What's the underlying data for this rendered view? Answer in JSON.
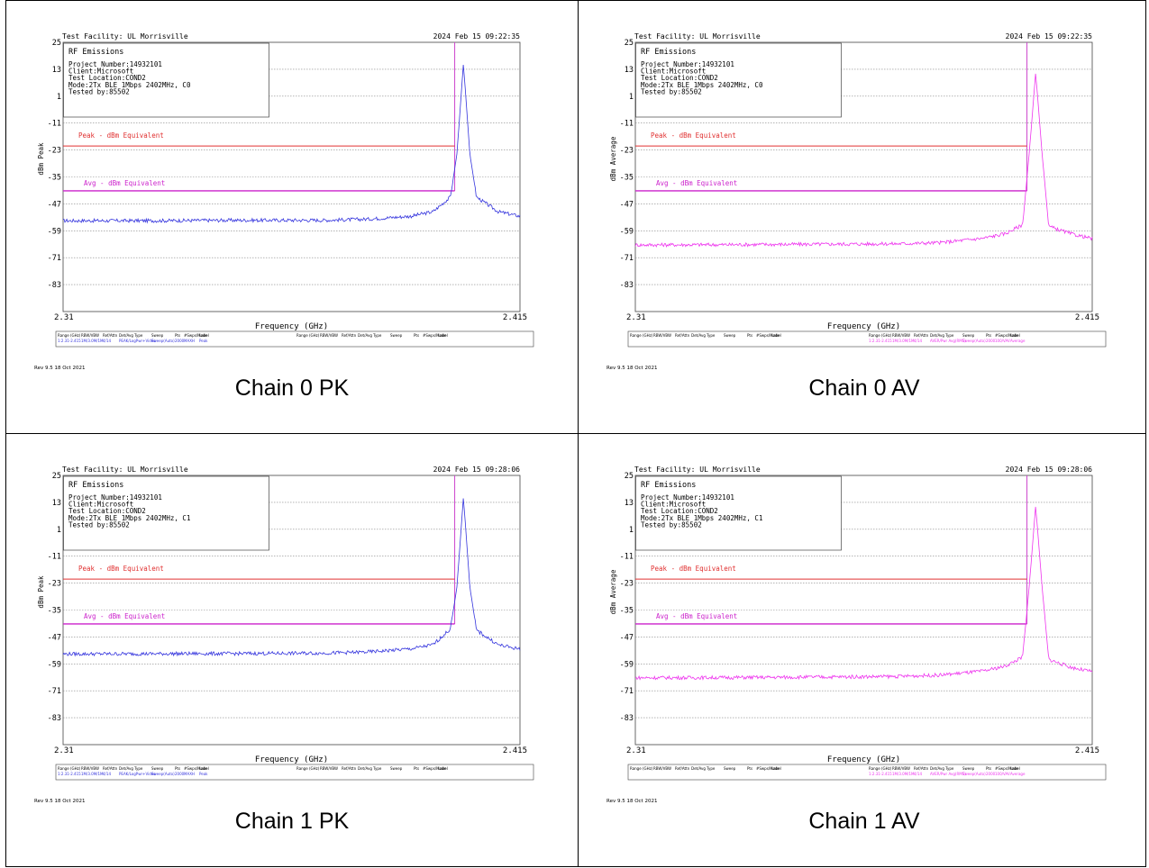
{
  "panels": [
    {
      "caption": "Chain 0 PK",
      "header": {
        "facility": "Test Facility:  UL Morrisville",
        "datetime": "2024 Feb 15   09:22:35"
      },
      "info": [
        "RF Emissions",
        "Project Number:14932101",
        "Client:Microsoft",
        "Test Location:COND2",
        "Mode:2Tx BLE 1Mbps 2402MHz, C0",
        "Tested by:85502"
      ],
      "ylabel": "dBm Peak",
      "xlabel": "Frequency (GHz)",
      "x_start": "2.31",
      "x_end": "2.415",
      "y_ticks": [
        "25",
        "13",
        "1",
        "-11",
        "-23",
        "-35",
        "-47",
        "-59",
        "-71",
        "-83"
      ],
      "limit_peak_label": "Peak - dBm Equivalent",
      "limit_avg_label": "Avg - dBm Equivalent",
      "footer_left": "Rev 9.5 18 Oct 2021",
      "legend_headers": [
        "Range (GHz)",
        "RBW/VBW",
        "Ref/Attn",
        "Det/Avg Type",
        "Sweep",
        "Pts",
        "#Swps/Mode",
        "Label"
      ],
      "legend_values": [
        "1:2.31-2.415",
        "1M/3.0M/1M",
        "4/14",
        "PEAK/LogPwr+Video",
        "Sweep(Auto)",
        "2000",
        "MAXH",
        "Peak"
      ],
      "trace_color": "#3333dd"
    },
    {
      "caption": "Chain 0 AV",
      "header": {
        "facility": "Test Facility:  UL Morrisville",
        "datetime": "2024 Feb 15   09:22:35"
      },
      "info": [
        "RF Emissions",
        "Project Number:14932101",
        "Client:Microsoft",
        "Test Location:COND2",
        "Mode:2Tx BLE 1Mbps 2402MHz, C0",
        "Tested by:85502"
      ],
      "ylabel": "dBm Average",
      "xlabel": "Frequency (GHz)",
      "x_start": "2.31",
      "x_end": "2.415",
      "y_ticks": [
        "25",
        "13",
        "1",
        "-11",
        "-23",
        "-35",
        "-47",
        "-59",
        "-71",
        "-83"
      ],
      "limit_peak_label": "Peak - dBm Equivalent",
      "limit_avg_label": "Avg - dBm Equivalent",
      "footer_left": "Rev 9.5 18 Oct 2021",
      "legend_headers": [
        "Range (GHz)",
        "RBW/VBW",
        "Ref/Attn",
        "Det/Avg Type",
        "Sweep",
        "Pts",
        "#Swps/Mode",
        "Label"
      ],
      "legend_values": [
        "1:2.31-2.415",
        "1M/3.0M/1M",
        "4/14",
        "AVER/Pwr Avg(RMS)",
        "Sweep(Auto)",
        "2000",
        "100/VAV",
        "Average"
      ],
      "trace_color": "#ee33ee"
    },
    {
      "caption": "Chain 1 PK",
      "header": {
        "facility": "Test Facility:  UL Morrisville",
        "datetime": "2024 Feb 15   09:28:06"
      },
      "info": [
        "RF Emissions",
        "Project Number:14932101",
        "Client:Microsoft",
        "Test Location:COND2",
        "Mode:2Tx BLE 1Mbps 2402MHz, C1",
        "Tested by:85502"
      ],
      "ylabel": "dBm Peak",
      "xlabel": "Frequency (GHz)",
      "x_start": "2.31",
      "x_end": "2.415",
      "y_ticks": [
        "25",
        "13",
        "1",
        "-11",
        "-23",
        "-35",
        "-47",
        "-59",
        "-71",
        "-83"
      ],
      "limit_peak_label": "Peak - dBm Equivalent",
      "limit_avg_label": "Avg - dBm Equivalent",
      "footer_left": "Rev 9.5 18 Oct 2021",
      "legend_headers": [
        "Range (GHz)",
        "RBW/VBW",
        "Ref/Attn",
        "Det/Avg Type",
        "Sweep",
        "Pts",
        "#Swps/Mode",
        "Label"
      ],
      "legend_values": [
        "1:2.31-2.415",
        "1M/3.0M/1M",
        "4/14",
        "PEAK/LogPwr+Video",
        "Sweep(Auto)",
        "2000",
        "MAXH",
        "Peak"
      ],
      "trace_color": "#3333dd"
    },
    {
      "caption": "Chain 1 AV",
      "header": {
        "facility": "Test Facility:  UL Morrisville",
        "datetime": "2024 Feb 15   09:28:06"
      },
      "info": [
        "RF Emissions",
        "Project Number:14932101",
        "Client:Microsoft",
        "Test Location:COND2",
        "Mode:2Tx BLE 1Mbps 2402MHz, C1",
        "Tested by:85502"
      ],
      "ylabel": "dBm Average",
      "xlabel": "Frequency (GHz)",
      "x_start": "2.31",
      "x_end": "2.415",
      "y_ticks": [
        "25",
        "13",
        "1",
        "-11",
        "-23",
        "-35",
        "-47",
        "-59",
        "-71",
        "-83"
      ],
      "limit_peak_label": "Peak - dBm Equivalent",
      "limit_avg_label": "Avg - dBm Equivalent",
      "footer_left": "Rev 9.5 18 Oct 2021",
      "legend_headers": [
        "Range (GHz)",
        "RBW/VBW",
        "Ref/Attn",
        "Det/Avg Type",
        "Sweep",
        "Pts",
        "#Swps/Mode",
        "Label"
      ],
      "legend_values": [
        "1:2.31-2.415",
        "1M/3.0M/1M",
        "4/14",
        "AVER/Pwr Avg(RMS)",
        "Sweep(Auto)",
        "2000",
        "100/VAV",
        "Average"
      ],
      "trace_color": "#ee33ee"
    }
  ],
  "colors": {
    "peak_limit": "#e03030",
    "avg_limit": "#cc22cc",
    "band_edge": "#cc44cc",
    "grid": "#888888"
  },
  "chart_data": [
    {
      "type": "line",
      "title": "RF Emissions",
      "xlabel": "Frequency (GHz)",
      "ylabel": "dBm Peak",
      "xlim": [
        2.31,
        2.415
      ],
      "ylim": [
        -95,
        25
      ],
      "band_edge_x": 2.4,
      "limits": [
        {
          "name": "Peak - dBm Equivalent",
          "y": -21.2
        },
        {
          "name": "Avg - dBm Equivalent",
          "y": -41.2
        }
      ],
      "series": [
        {
          "x": [
            2.31,
            2.33,
            2.35,
            2.37,
            2.38,
            2.39,
            2.395,
            2.399,
            2.4005,
            2.402,
            2.4035,
            2.405,
            2.41,
            2.415
          ],
          "y": [
            -54.5,
            -54.5,
            -54.3,
            -54.3,
            -53.8,
            -52.5,
            -50.5,
            -44,
            -25,
            15.5,
            -25,
            -44,
            -50.5,
            -52.5
          ]
        }
      ]
    },
    {
      "type": "line",
      "title": "RF Emissions",
      "xlabel": "Frequency (GHz)",
      "ylabel": "dBm Average",
      "xlim": [
        2.31,
        2.415
      ],
      "ylim": [
        -95,
        25
      ],
      "band_edge_x": 2.4,
      "limits": [
        {
          "name": "Peak - dBm Equivalent",
          "y": -21.2
        },
        {
          "name": "Avg - dBm Equivalent",
          "y": -41.2
        }
      ],
      "series": [
        {
          "x": [
            2.31,
            2.33,
            2.35,
            2.37,
            2.38,
            2.39,
            2.395,
            2.399,
            2.4005,
            2.402,
            2.4035,
            2.405,
            2.41,
            2.415
          ],
          "y": [
            -65.3,
            -65.2,
            -65,
            -64.8,
            -64.3,
            -62.3,
            -60.3,
            -56.3,
            -25,
            11.5,
            -25,
            -57,
            -60.3,
            -62.5
          ]
        }
      ]
    },
    {
      "type": "line",
      "title": "RF Emissions",
      "xlabel": "Frequency (GHz)",
      "ylabel": "dBm Peak",
      "xlim": [
        2.31,
        2.415
      ],
      "ylim": [
        -95,
        25
      ],
      "band_edge_x": 2.4,
      "limits": [
        {
          "name": "Peak - dBm Equivalent",
          "y": -21.2
        },
        {
          "name": "Avg - dBm Equivalent",
          "y": -41.2
        }
      ],
      "series": [
        {
          "x": [
            2.31,
            2.33,
            2.35,
            2.37,
            2.38,
            2.39,
            2.395,
            2.399,
            2.4005,
            2.402,
            2.4035,
            2.405,
            2.41,
            2.415
          ],
          "y": [
            -54.6,
            -54.5,
            -54.4,
            -54.2,
            -53.7,
            -52.3,
            -50.5,
            -43.5,
            -25,
            15.3,
            -25,
            -44,
            -50.5,
            -52.5
          ]
        }
      ]
    },
    {
      "type": "line",
      "title": "RF Emissions",
      "xlabel": "Frequency (GHz)",
      "ylabel": "dBm Average",
      "xlim": [
        2.31,
        2.415
      ],
      "ylim": [
        -95,
        25
      ],
      "band_edge_x": 2.4,
      "limits": [
        {
          "name": "Peak - dBm Equivalent",
          "y": -21.2
        },
        {
          "name": "Avg - dBm Equivalent",
          "y": -41.2
        }
      ],
      "series": [
        {
          "x": [
            2.31,
            2.33,
            2.35,
            2.37,
            2.38,
            2.39,
            2.395,
            2.399,
            2.4005,
            2.402,
            2.4035,
            2.405,
            2.41,
            2.415
          ],
          "y": [
            -65.2,
            -65.1,
            -64.9,
            -64.6,
            -64,
            -62.2,
            -60,
            -56,
            -25,
            11.5,
            -25,
            -57,
            -60.5,
            -62.5
          ]
        }
      ]
    }
  ]
}
